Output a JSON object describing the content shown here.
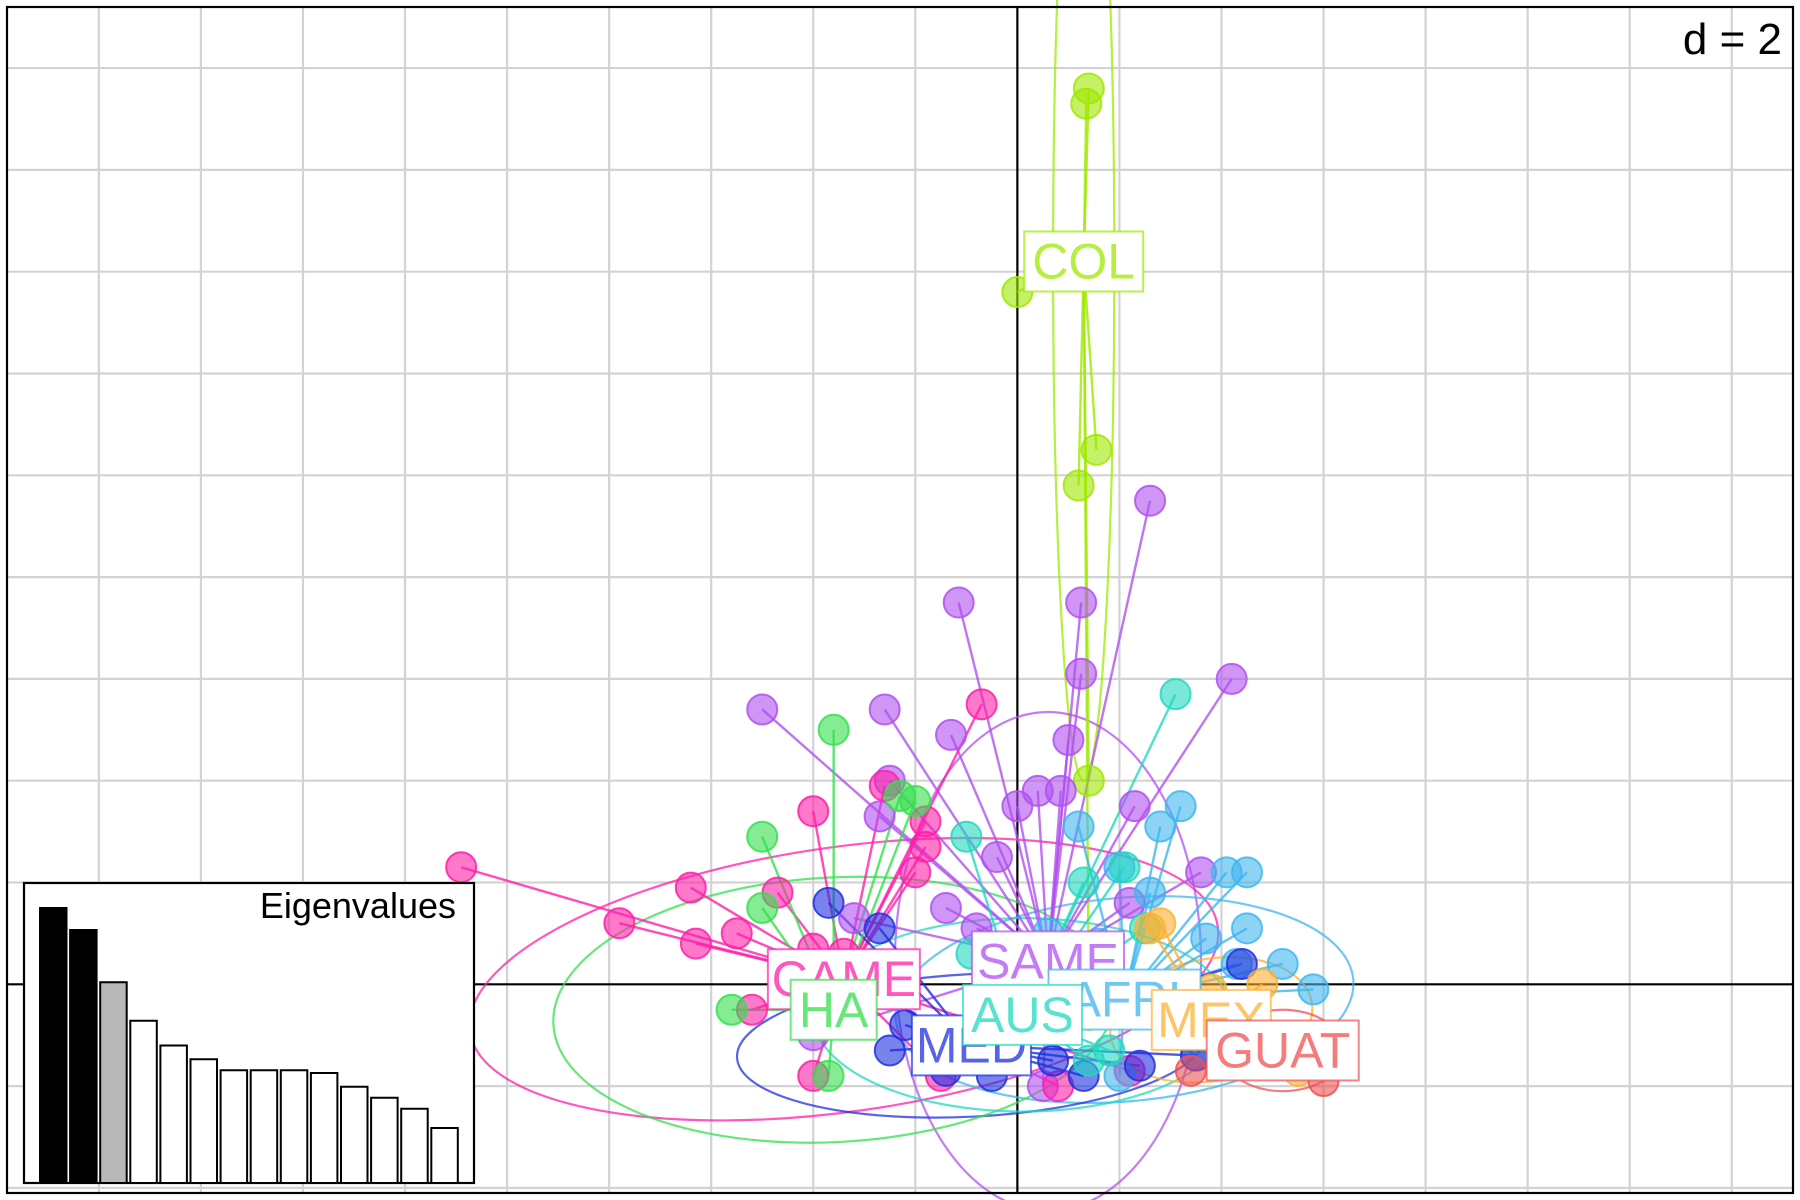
{
  "chart_data": {
    "type": "scatter",
    "subtype": "ade4 s.class scatter with group spiders and inertia ellipses",
    "grid_label": "d = 2",
    "grid_step": 2,
    "xlim": [
      -19.8,
      15.2
    ],
    "ylim": [
      -4.1,
      19.2
    ],
    "axes_cross_at": [
      0,
      0
    ],
    "grid": true,
    "groups": [
      {
        "name": "COL",
        "color": "#9fe800",
        "center": [
          1.3,
          14.2
        ],
        "ellipse": {
          "rx": 0.6,
          "ry": 10.2,
          "angle": 0
        },
        "points": [
          [
            1.4,
            17.6
          ],
          [
            1.35,
            17.3
          ],
          [
            0.0,
            13.6
          ],
          [
            1.55,
            10.5
          ],
          [
            1.2,
            9.8
          ],
          [
            1.4,
            4.0
          ],
          [
            1.4,
            -0.6
          ]
        ]
      },
      {
        "name": "SAME",
        "color": "#b050f0",
        "center": [
          0.6,
          0.45
        ],
        "ellipse": {
          "rx": 3.0,
          "ry": 4.9,
          "angle": 0
        },
        "points": [
          [
            2.6,
            9.5
          ],
          [
            1.25,
            7.5
          ],
          [
            -1.15,
            7.5
          ],
          [
            1.25,
            6.1
          ],
          [
            4.2,
            6.0
          ],
          [
            -5.0,
            5.4
          ],
          [
            -2.6,
            5.4
          ],
          [
            -1.3,
            4.9
          ],
          [
            1.0,
            4.8
          ],
          [
            -2.5,
            4.0
          ],
          [
            0.4,
            3.8
          ],
          [
            0.85,
            3.8
          ],
          [
            2.3,
            3.5
          ],
          [
            -2.7,
            3.3
          ],
          [
            0.0,
            3.5
          ],
          [
            -0.4,
            2.5
          ],
          [
            3.6,
            2.2
          ],
          [
            -3.2,
            1.3
          ],
          [
            2.2,
            1.6
          ],
          [
            -1.4,
            1.5
          ],
          [
            -0.8,
            1.1
          ],
          [
            -4.0,
            -1.0
          ],
          [
            0.5,
            -2.0
          ]
        ]
      },
      {
        "name": "CAME",
        "color": "#ff1fa8",
        "center": [
          -3.4,
          0.1
        ],
        "ellipse": {
          "rx": 7.4,
          "ry": 2.6,
          "angle": -8
        },
        "points": [
          [
            -10.9,
            2.3
          ],
          [
            -7.8,
            1.2
          ],
          [
            -6.3,
            0.8
          ],
          [
            -5.5,
            1.0
          ],
          [
            -4.0,
            3.4
          ],
          [
            -2.6,
            3.9
          ],
          [
            -1.8,
            3.2
          ],
          [
            -2.0,
            2.2
          ],
          [
            -6.4,
            1.9
          ],
          [
            -4.7,
            1.8
          ],
          [
            -4.0,
            0.7
          ],
          [
            -5.2,
            -0.5
          ],
          [
            -4.0,
            -1.8
          ],
          [
            -1.5,
            -1.8
          ],
          [
            -0.7,
            5.5
          ],
          [
            0.8,
            -2.0
          ],
          [
            2.2,
            -1.7
          ],
          [
            -3.4,
            0.6
          ],
          [
            -1.8,
            2.7
          ]
        ]
      },
      {
        "name": "AFRI",
        "color": "#3fb6ee",
        "center": [
          2.1,
          -0.3
        ],
        "ellipse": {
          "rx": 4.5,
          "ry": 2.0,
          "angle": -5
        },
        "points": [
          [
            3.2,
            3.5
          ],
          [
            2.8,
            3.1
          ],
          [
            4.1,
            2.2
          ],
          [
            4.5,
            2.2
          ],
          [
            4.5,
            1.1
          ],
          [
            5.2,
            0.4
          ],
          [
            5.8,
            -0.1
          ],
          [
            1.2,
            3.1
          ],
          [
            2.0,
            2.3
          ],
          [
            2.6,
            1.8
          ],
          [
            3.7,
            0.9
          ],
          [
            4.3,
            0.4
          ],
          [
            2.0,
            -1.8
          ],
          [
            3.5,
            -1.4
          ],
          [
            0.6,
            1.0
          ],
          [
            1.6,
            0.8
          ]
        ]
      },
      {
        "name": "MED",
        "color": "#2030e0",
        "center": [
          -0.9,
          -1.2
        ],
        "ellipse": {
          "rx": 4.6,
          "ry": 1.4,
          "angle": -3
        },
        "points": [
          [
            -3.7,
            1.6
          ],
          [
            -2.7,
            1.1
          ],
          [
            -3.1,
            0.0
          ],
          [
            -2.2,
            -0.8
          ],
          [
            -1.4,
            -1.7
          ],
          [
            -0.5,
            -1.8
          ],
          [
            0.7,
            -1.5
          ],
          [
            1.3,
            -1.8
          ],
          [
            2.4,
            -1.6
          ],
          [
            4.4,
            0.4
          ],
          [
            3.5,
            -1.4
          ],
          [
            -2.5,
            -1.3
          ],
          [
            -0.9,
            -1.4
          ]
        ]
      },
      {
        "name": "HA",
        "color": "#33e04c",
        "center": [
          -3.6,
          -0.5
        ],
        "ellipse": {
          "rx": 5.5,
          "ry": 2.6,
          "angle": -3
        },
        "points": [
          [
            -3.6,
            5.0
          ],
          [
            -5.0,
            2.9
          ],
          [
            -5.0,
            1.5
          ],
          [
            -2.3,
            3.7
          ],
          [
            -2.0,
            3.6
          ],
          [
            -3.7,
            -1.8
          ],
          [
            -2.5,
            -0.2
          ],
          [
            -5.6,
            -0.5
          ]
        ]
      },
      {
        "name": "AUS",
        "color": "#20d8c0",
        "center": [
          0.1,
          -0.6
        ],
        "ellipse": {
          "rx": 4.1,
          "ry": 1.9,
          "angle": 0
        },
        "points": [
          [
            3.1,
            5.7
          ],
          [
            -1.0,
            2.9
          ],
          [
            2.1,
            2.3
          ],
          [
            2.5,
            1.1
          ],
          [
            1.3,
            2.0
          ],
          [
            1.4,
            -1.5
          ],
          [
            -0.9,
            0.6
          ],
          [
            3.0,
            -0.3
          ],
          [
            1.8,
            -1.3
          ]
        ]
      },
      {
        "name": "MEX",
        "color": "#ffb030",
        "center": [
          3.8,
          -0.7
        ],
        "ellipse": {
          "rx": 2.0,
          "ry": 1.2,
          "angle": -10
        },
        "points": [
          [
            2.6,
            1.1
          ],
          [
            4.8,
            0.0
          ],
          [
            5.5,
            -1.7
          ],
          [
            3.8,
            -0.1
          ],
          [
            2.8,
            1.2
          ]
        ]
      },
      {
        "name": "GUAT",
        "color": "#f05050",
        "center": [
          5.2,
          -1.3
        ],
        "ellipse": {
          "rx": 1.2,
          "ry": 0.8,
          "angle": 0
        },
        "points": [
          [
            3.4,
            -1.7
          ],
          [
            5.7,
            -1.2
          ],
          [
            6.0,
            -1.9
          ]
        ]
      }
    ]
  },
  "eigenvalues": {
    "title": "Eigenvalues",
    "values": [
      100,
      92,
      73,
      59,
      50,
      45,
      41,
      41,
      41,
      40,
      35,
      31,
      27,
      20
    ],
    "colors": [
      "#000000",
      "#000000",
      "#b8b8b8",
      "#ffffff",
      "#ffffff",
      "#ffffff",
      "#ffffff",
      "#ffffff",
      "#ffffff",
      "#ffffff",
      "#ffffff",
      "#ffffff",
      "#ffffff",
      "#ffffff"
    ]
  }
}
